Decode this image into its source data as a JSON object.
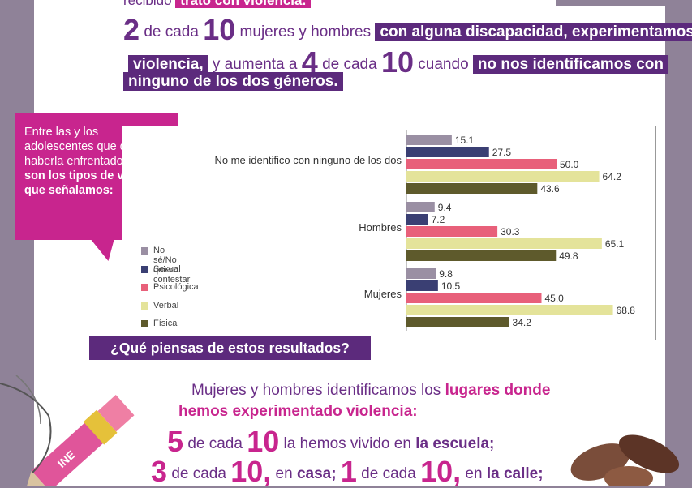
{
  "intro": {
    "line0_prefix": "recibido",
    "line0_highlight": "trato con violencia."
  },
  "disability": {
    "num1": "2",
    "t1": "de cada",
    "num2": "10",
    "t2": "mujeres y hombres",
    "hl1": "con alguna discapacidad, experimentamos",
    "hl2": "violencia,",
    "t3": "y aumenta a",
    "num3": "4",
    "t4": "de cada",
    "num4": "10",
    "t5": "cuando",
    "hl3": "no nos identificamos con",
    "hl4": "ninguno de los dos géneros."
  },
  "callout": {
    "p1": "Entre las y los adolescentes que dijimos haberla enfrentado,",
    "p2": "éstos son los tipos de violencia que señalamos:"
  },
  "chart_data": {
    "type": "bar",
    "orientation": "horizontal",
    "categories": [
      "No me identifico con ninguno de los dos",
      "Hombres",
      "Mujeres"
    ],
    "series": [
      {
        "name": "No sé/No quiero contestar",
        "color": "#9a8fa3",
        "values": [
          15.1,
          9.4,
          9.8
        ]
      },
      {
        "name": "Sexual",
        "color": "#3a3f73",
        "values": [
          27.5,
          7.2,
          10.5
        ]
      },
      {
        "name": "Psicológica",
        "color": "#e8607a",
        "values": [
          50.0,
          30.3,
          45.0
        ]
      },
      {
        "name": "Verbal",
        "color": "#e4e39a",
        "values": [
          64.2,
          65.1,
          68.8
        ]
      },
      {
        "name": "Física",
        "color": "#5e5a2c",
        "values": [
          43.6,
          49.8,
          34.2
        ]
      }
    ],
    "xlim": [
      0,
      100
    ],
    "legend": "bottom-left"
  },
  "question": "¿Qué piensas de estos resultados?",
  "places": {
    "l1a": "Mujeres y hombres identificamos los",
    "l1b": "lugares donde",
    "l2": "hemos experimentado violencia:",
    "n1": "5",
    "t1": "de cada",
    "n2": "10",
    "t2": "la hemos vivido en",
    "b1": "la escuela;",
    "n3": "3",
    "t3": "de cada",
    "n4": "10,",
    "t4": "en",
    "b2": "casa;",
    "n5": "1",
    "t5": "de cada",
    "n6": "10,",
    "t6": "en",
    "b3": "la calle;"
  },
  "pencil_logo": "INE",
  "colors": {
    "background": "#8f8298",
    "purple": "#5c2a7c",
    "magenta": "#c8258e"
  }
}
